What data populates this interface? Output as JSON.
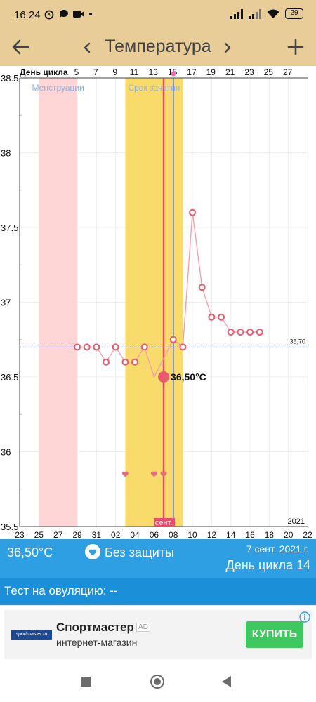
{
  "status_bar": {
    "time": "16:24",
    "battery": "29",
    "left_icons": [
      "alarm-icon",
      "chat-icon",
      "video-icon",
      "dot-icon"
    ],
    "right_icons": [
      "signal-icon",
      "signal-icon",
      "wifi-icon",
      "battery-icon"
    ]
  },
  "header": {
    "title": "Температура",
    "back_icon": "arrow-left-icon",
    "prev_icon": "chevron-left-icon",
    "next_icon": "chevron-right-icon",
    "add_icon": "plus-icon",
    "background": "#e8cd99"
  },
  "chart_data": {
    "type": "line",
    "top_axis_label": "День цикла",
    "top_axis_ticks": [
      "5",
      "7",
      "9",
      "11",
      "13",
      "15",
      "17",
      "19",
      "21",
      "23",
      "25",
      "27"
    ],
    "bottom_axis_ticks": [
      "23",
      "25",
      "27",
      "29",
      "31",
      "02",
      "04",
      "06",
      "08",
      "10",
      "12",
      "14",
      "16",
      "18",
      "20",
      "22"
    ],
    "bottom_selected_label": "сент.",
    "year_label": "2021",
    "y_ticks": [
      "38.5",
      "38",
      "37.5",
      "37",
      "36.5",
      "36",
      "35.5"
    ],
    "ylim": [
      35.5,
      38.5
    ],
    "zones": [
      {
        "label": "Менструации",
        "start": "25",
        "end": "29",
        "color": "#ffd6d6",
        "label_color": "#8fb0e0"
      },
      {
        "label": "Срок зачатия",
        "start": "03",
        "end": "09",
        "color": "#f9db6b",
        "label_color": "#8fb0e0"
      }
    ],
    "coverline_value": 36.7,
    "coverline_label": "36,70",
    "series": [
      {
        "dates": [
          "29",
          "30",
          "31",
          "01",
          "02",
          "03",
          "04",
          "05",
          "06",
          "07",
          "08",
          "09",
          "10",
          "11",
          "12",
          "13",
          "14",
          "15",
          "16",
          "17",
          "18"
        ],
        "values": [
          36.7,
          36.7,
          36.7,
          36.6,
          36.7,
          36.6,
          36.6,
          36.7,
          36.5,
          36.75,
          36.7,
          37.6,
          37.1,
          36.9,
          36.9,
          36.8,
          36.8,
          36.8,
          36.8
        ],
        "x_offsets": [
          0,
          1,
          2,
          3,
          4,
          5,
          6,
          7,
          8,
          10,
          11,
          12,
          13,
          14,
          15,
          16,
          17,
          18,
          19
        ],
        "color": "#e85a6c"
      }
    ],
    "selected": {
      "date": "07",
      "value": 36.5,
      "label": "36,50°C"
    },
    "today_date": "08",
    "sex_markers": [
      "03",
      "06",
      "07"
    ],
    "colors": {
      "selected_line": "#e84a6a",
      "today_line": "#3c4fa0",
      "coverline": "#4a63d8",
      "grid": "#eeeeee"
    }
  },
  "info": {
    "temperature": "36,50°C",
    "protection": "Без защиты",
    "protection_icon": "heart-icon",
    "date": "7 сент. 2021 г.",
    "cycle_day": "День цикла 14",
    "color": "#2f9fe3"
  },
  "ovulation": {
    "text": "Тест на овуляцию: --"
  },
  "ad": {
    "title": "Спортмастер",
    "badge": "AD",
    "subtitle": "интернет-магазин",
    "logo_text": "sportmaster.ru",
    "button": "КУПИТЬ"
  },
  "navbar": {
    "icons": [
      "recents-icon",
      "home-icon",
      "back-icon"
    ]
  }
}
